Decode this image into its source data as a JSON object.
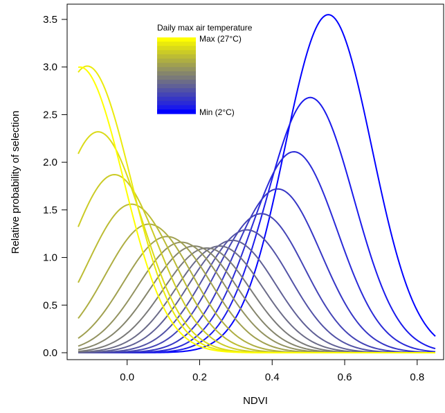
{
  "chart_data": {
    "type": "line",
    "xlabel": "NDVI",
    "ylabel": "Relative probability of selection",
    "xlim": [
      -0.135,
      0.85
    ],
    "ylim": [
      0.0,
      3.6
    ],
    "x_ticks": [
      "0.0",
      "0.2",
      "0.4",
      "0.6",
      "0.8"
    ],
    "x_tick_values": [
      0.0,
      0.2,
      0.4,
      0.6,
      0.8
    ],
    "y_ticks": [
      "0.0",
      "0.5",
      "1.0",
      "1.5",
      "2.0",
      "2.5",
      "3.0",
      "3.5"
    ],
    "y_tick_values": [
      0.0,
      0.5,
      1.0,
      1.5,
      2.0,
      2.5,
      3.0,
      3.5
    ],
    "grid": false,
    "legend": {
      "title": "Daily max air temperature",
      "max_label": "Max (27°C)",
      "min_label": "Min (2°C)",
      "placement": "top-center",
      "color_max": "#ffff00",
      "color_mid": "#808080",
      "color_min": "#0000ff"
    },
    "colors": [
      "#0000ff",
      "#1a1aeb",
      "#2a2ad7",
      "#3636c5",
      "#4444b6",
      "#5252a6",
      "#606096",
      "#6c6c88",
      "#7a7a79",
      "#85856c",
      "#939360",
      "#a0a050",
      "#aeae42",
      "#bcbc34",
      "#cbcb26",
      "#dada18",
      "#eaea0c",
      "#ffff00"
    ],
    "series": [
      {
        "mu": 0.555,
        "peak": 3.55
      },
      {
        "mu": 0.505,
        "peak": 2.68
      },
      {
        "mu": 0.46,
        "peak": 2.11
      },
      {
        "mu": 0.415,
        "peak": 1.72
      },
      {
        "mu": 0.37,
        "peak": 1.46
      },
      {
        "mu": 0.33,
        "peak": 1.29
      },
      {
        "mu": 0.29,
        "peak": 1.18
      },
      {
        "mu": 0.255,
        "peak": 1.12
      },
      {
        "mu": 0.22,
        "peak": 1.1
      },
      {
        "mu": 0.185,
        "peak": 1.12
      },
      {
        "mu": 0.15,
        "peak": 1.16
      },
      {
        "mu": 0.11,
        "peak": 1.22
      },
      {
        "mu": 0.06,
        "peak": 1.35
      },
      {
        "mu": 0.012,
        "peak": 1.56
      },
      {
        "mu": -0.035,
        "peak": 1.87
      },
      {
        "mu": -0.08,
        "peak": 2.32
      },
      {
        "mu": -0.11,
        "peak": 3.01
      },
      {
        "mu": -0.13,
        "peak": 3.0
      }
    ]
  }
}
